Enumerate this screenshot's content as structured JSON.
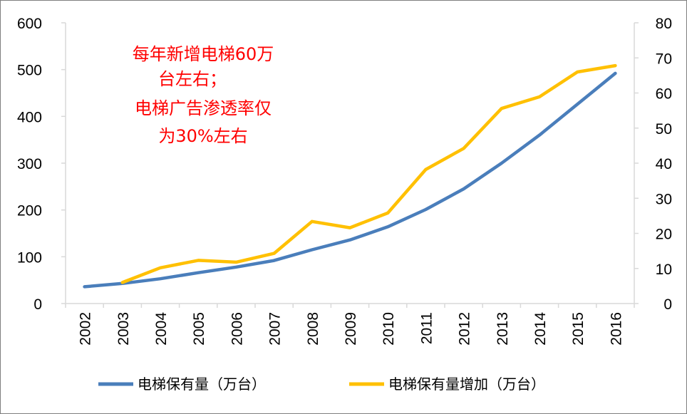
{
  "chart_data": {
    "type": "line",
    "x": [
      "2002",
      "2003",
      "2004",
      "2005",
      "2006",
      "2007",
      "2008",
      "2009",
      "2010",
      "2011",
      "2012",
      "2013",
      "2014",
      "2015",
      "2016"
    ],
    "series": [
      {
        "name": "电梯保有量（万台）",
        "axis": "left",
        "color": "#4a7ebb",
        "values": [
          36,
          43,
          53,
          66,
          78,
          92,
          115,
          136,
          164,
          201,
          245,
          300,
          360,
          426,
          492
        ]
      },
      {
        "name": "电梯保有量增加（万台）",
        "axis": "right",
        "color": "#ffc000",
        "values": [
          null,
          6,
          10.2,
          12.3,
          11.8,
          14.3,
          23.4,
          21.6,
          25.8,
          38.2,
          44.2,
          55.6,
          58.9,
          66.0,
          67.8
        ]
      }
    ],
    "y_left": {
      "ylim": [
        0,
        600
      ],
      "ticks": [
        "0",
        "100",
        "200",
        "300",
        "400",
        "500",
        "600"
      ]
    },
    "y_right": {
      "ylim": [
        0,
        80
      ],
      "ticks": [
        "0",
        "10",
        "20",
        "30",
        "40",
        "50",
        "60",
        "70",
        "80"
      ]
    },
    "grid": false,
    "legend_position": "bottom",
    "annotation": [
      "每年新增电梯60万",
      "台左右；",
      "电梯广告渗透率仅",
      "为30%左右"
    ]
  }
}
